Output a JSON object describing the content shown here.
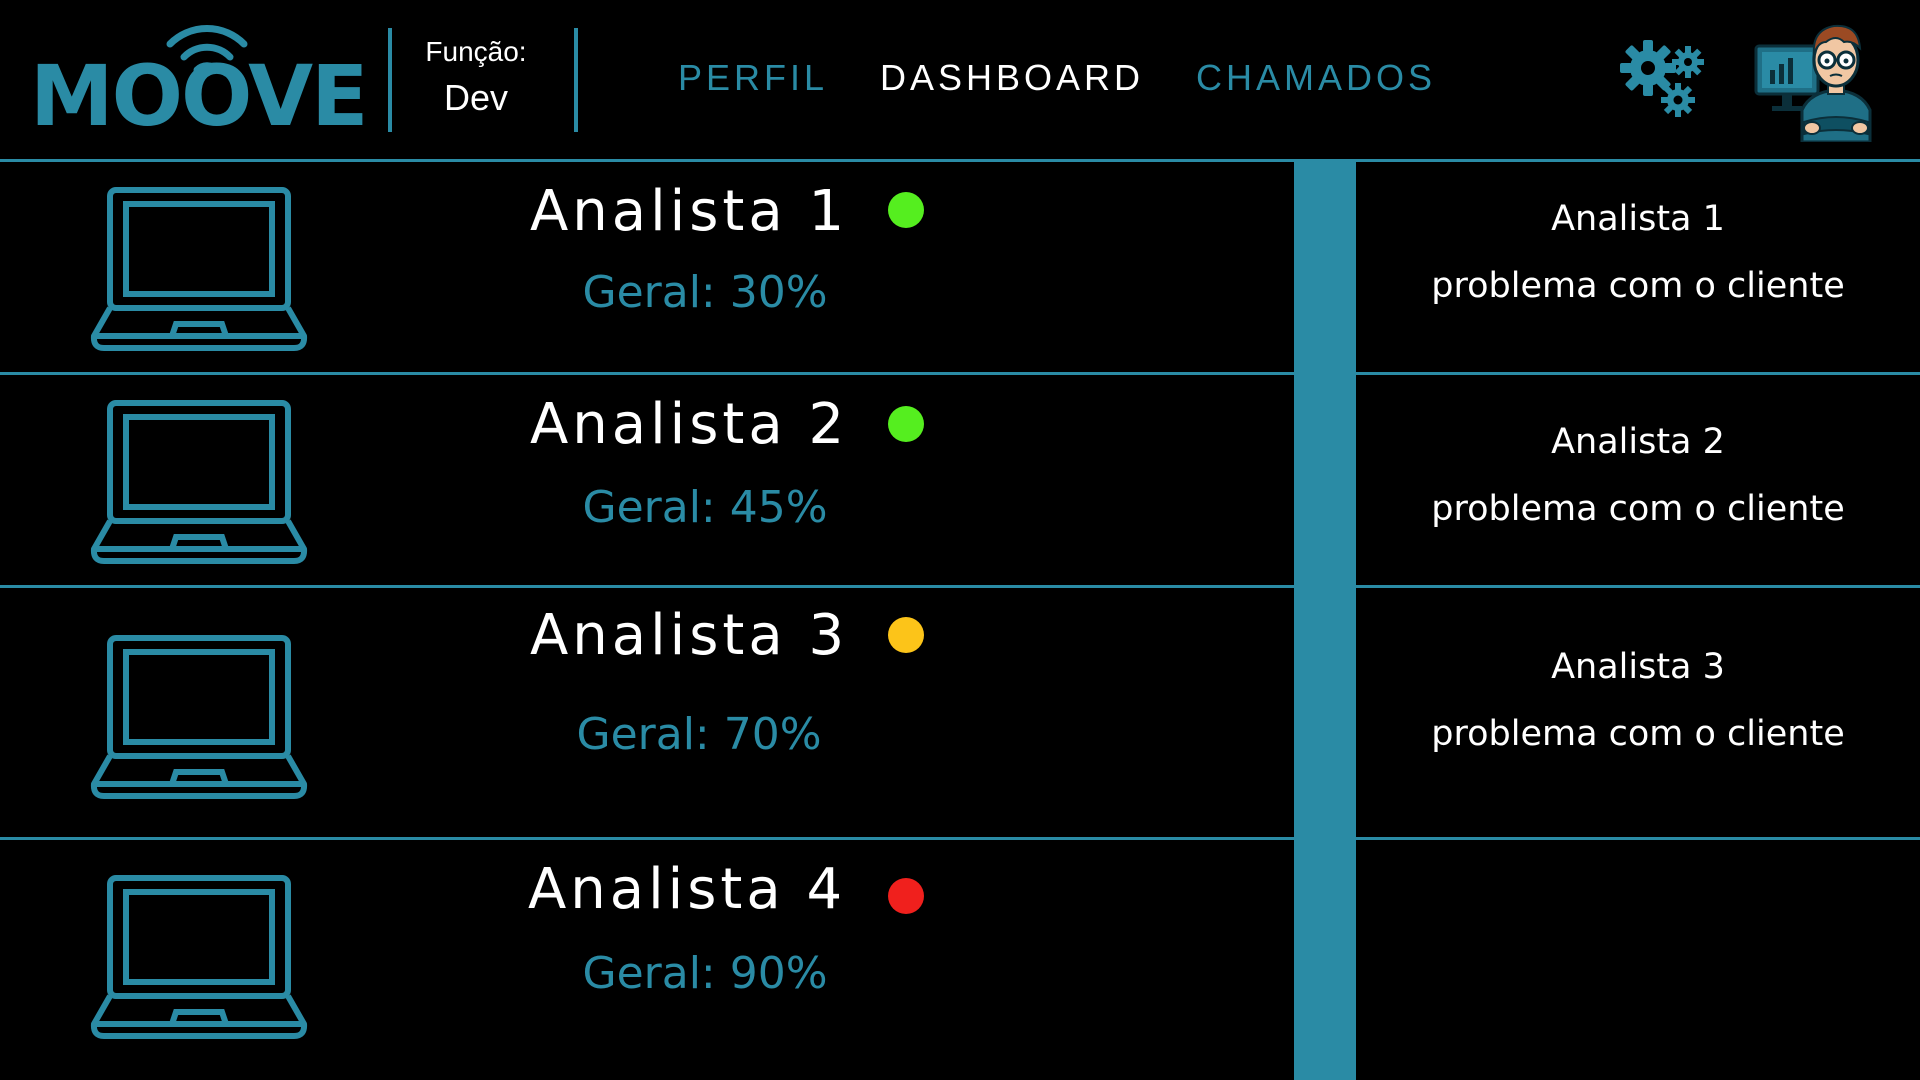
{
  "header": {
    "logo_text": "MOOVE",
    "funcao_label": "Função:",
    "funcao_value": "Dev",
    "nav": [
      {
        "label": "PERFIL",
        "active": false
      },
      {
        "label": "DASHBOARD",
        "active": true
      },
      {
        "label": "CHAMADOS",
        "active": false
      }
    ],
    "settings_icon": "gears-icon",
    "avatar_icon": "developer-avatar-icon"
  },
  "analysts": [
    {
      "name": "Analista 1",
      "geral": "Geral: 30%",
      "status_color": "#55ee1f",
      "icon": "laptop-icon"
    },
    {
      "name": "Analista 2",
      "geral": "Geral: 45%",
      "status_color": "#55ee1f",
      "icon": "laptop-icon"
    },
    {
      "name": "Analista 3",
      "geral": "Geral: 70%",
      "status_color": "#fcc419",
      "icon": "laptop-icon"
    },
    {
      "name": "Analista 4",
      "geral": "Geral: 90%",
      "status_color": "#f0201d",
      "icon": "laptop-icon"
    }
  ],
  "tickets": [
    {
      "title": "Analista 1",
      "description": "problema com o cliente"
    },
    {
      "title": "Analista 2",
      "description": "problema com o cliente"
    },
    {
      "title": "Analista 3",
      "description": "problema com o cliente"
    }
  ],
  "colors": {
    "accent": "#2a8ba5",
    "background": "#000000",
    "text": "#ffffff"
  }
}
